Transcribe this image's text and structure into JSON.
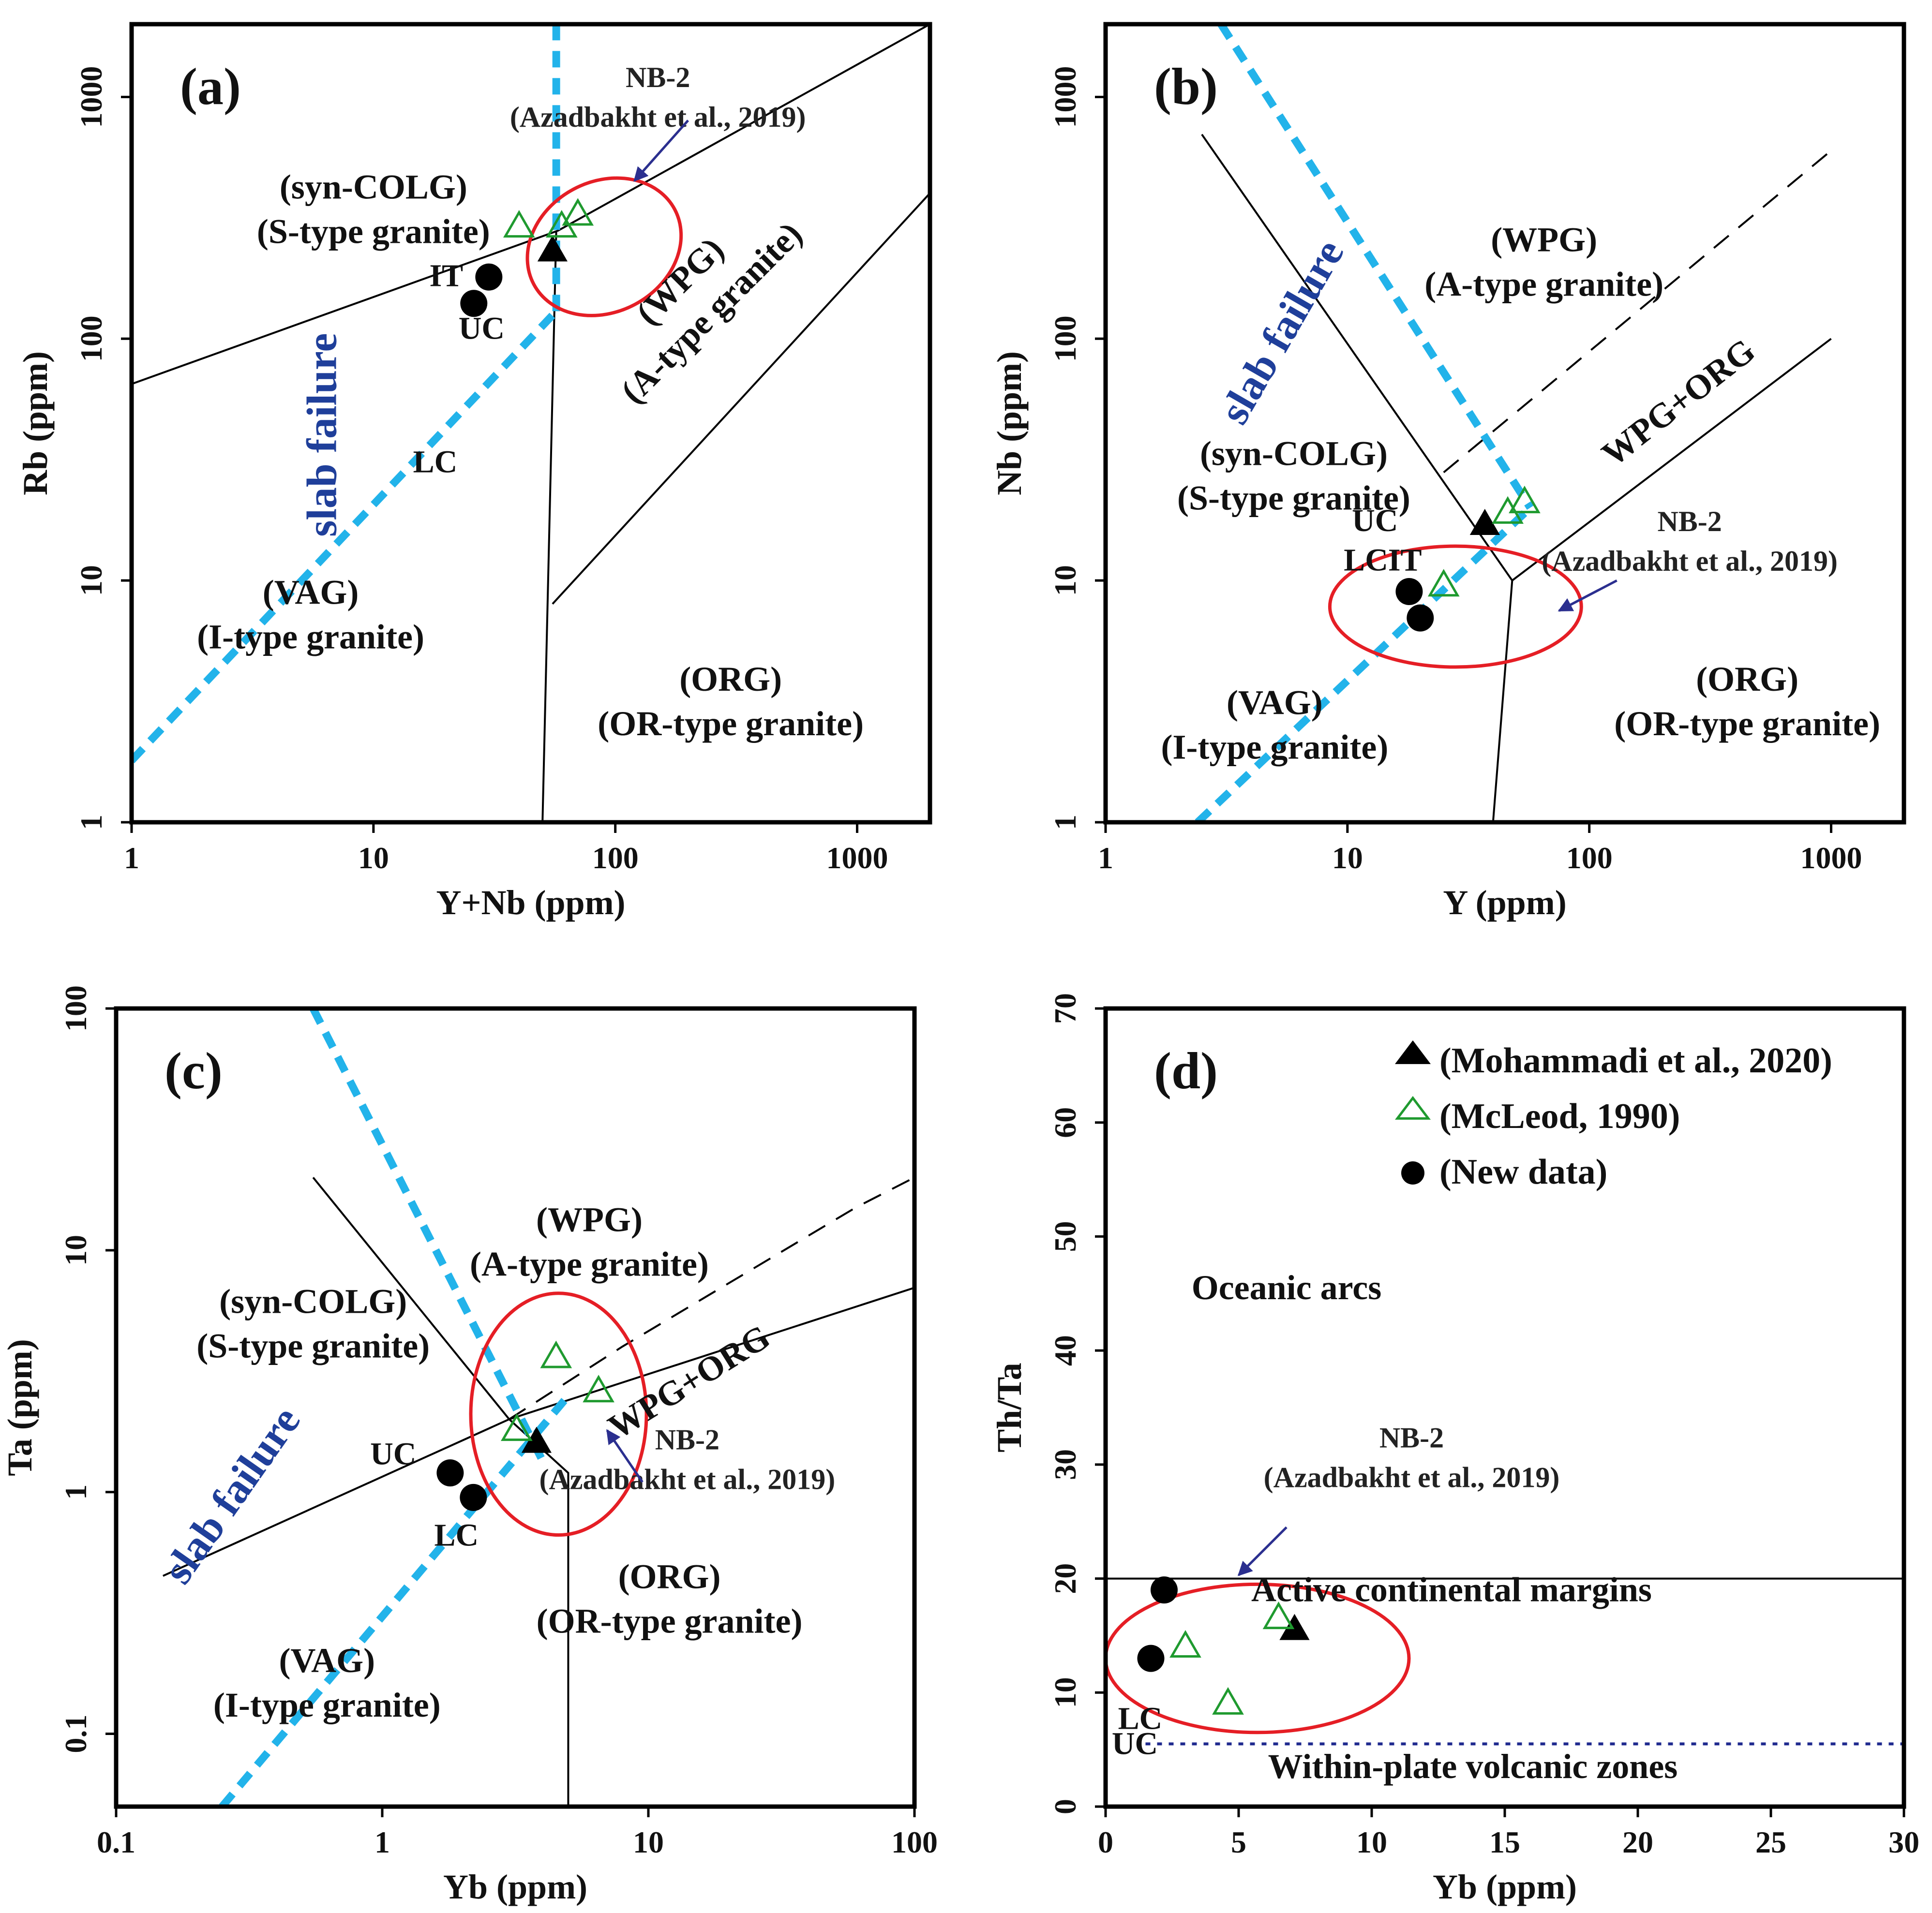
{
  "figure": {
    "colors": {
      "frame": "#000000",
      "boundary": "#000000",
      "slab_line": "#22b3ea",
      "slab_text": "#1f3f9a",
      "ellipse": "#e51e25",
      "arrow": "#2b2f8f",
      "triangle_open": "#1f9a2f",
      "dotted": "#1f2a8f"
    }
  },
  "chart_data": [
    {
      "id": "a",
      "type": "scatter",
      "panel_label": "(a)",
      "xscale": "log",
      "yscale": "log",
      "xlim": [
        1,
        2000
      ],
      "ylim": [
        1,
        2000
      ],
      "xlabel": "Y+Nb (ppm)",
      "ylabel": "Rb (ppm)",
      "xticks": [
        {
          "v": 1,
          "label": "1"
        },
        {
          "v": 10,
          "label": "10"
        },
        {
          "v": 100,
          "label": "100"
        },
        {
          "v": 1000,
          "label": "1000"
        }
      ],
      "yticks": [
        {
          "v": 1,
          "label": "1"
        },
        {
          "v": 10,
          "label": "10"
        },
        {
          "v": 100,
          "label": "100"
        },
        {
          "v": 1000,
          "label": "1000"
        }
      ],
      "fields": [
        {
          "name": "syn-colg",
          "lines": [
            "(syn-COLG)",
            "(S-type granite)"
          ],
          "at": [
            10,
            380
          ]
        },
        {
          "name": "wpg",
          "lines": [
            "(WPG)",
            "(A-type granite)"
          ],
          "at": [
            200,
            160
          ],
          "rotate": -45
        },
        {
          "name": "vag",
          "lines": [
            "(VAG)",
            "(I-type granite)"
          ],
          "at": [
            5.5,
            8
          ]
        },
        {
          "name": "org",
          "lines": [
            "(ORG)",
            "(OR-type granite)"
          ],
          "at": [
            300,
            3.5
          ]
        },
        {
          "name": "ref-it",
          "lines": [
            "IT"
          ],
          "at": [
            20,
            165
          ],
          "size": "sm"
        },
        {
          "name": "ref-uc",
          "lines": [
            "UC"
          ],
          "at": [
            28,
            100
          ],
          "size": "sm"
        },
        {
          "name": "ref-lc",
          "lines": [
            "LC"
          ],
          "at": [
            18,
            28
          ],
          "size": "sm"
        }
      ],
      "boundaries": [
        {
          "style": "solid",
          "points": [
            [
              1,
              65
            ],
            [
              58,
              280
            ],
            [
              2000,
              2000
            ]
          ]
        },
        {
          "style": "solid",
          "points": [
            [
              50,
              1
            ],
            [
              57,
              280
            ]
          ]
        },
        {
          "style": "solid",
          "points": [
            [
              55,
              8
            ],
            [
              2000,
              400
            ]
          ]
        }
      ],
      "slab_lines": [
        {
          "points": [
            [
              1,
              1.8
            ],
            [
              57,
              130
            ]
          ]
        },
        {
          "points": [
            [
              57,
              130
            ],
            [
              57,
              2000
            ]
          ]
        }
      ],
      "slab_label": {
        "text": "slab failure",
        "at": [
          7,
          40
        ],
        "rotate": -90
      },
      "ellipse": {
        "center": [
          90,
          240
        ],
        "rx_decades": 0.33,
        "ry_decades": 0.27,
        "rotate": -28
      },
      "annotation": {
        "lines": [
          "NB-2",
          "(Azadbakht et al., 2019)"
        ],
        "at": [
          150,
          1100
        ],
        "arrow_from": [
          200,
          800
        ],
        "arrow_to": [
          120,
          450
        ]
      },
      "series": [
        {
          "name": "Mohammadi et al., 2020",
          "marker": "filled-triangle",
          "points": [
            [
              55,
              230
            ]
          ]
        },
        {
          "name": "McLeod, 1990",
          "marker": "open-triangle",
          "points": [
            [
              40,
              290
            ],
            [
              60,
              290
            ],
            [
              70,
              325
            ]
          ]
        },
        {
          "name": "New data",
          "marker": "filled-circle",
          "points": [
            [
              30,
              180
            ],
            [
              26,
              140
            ]
          ]
        }
      ]
    },
    {
      "id": "b",
      "type": "scatter",
      "panel_label": "(b)",
      "xscale": "log",
      "yscale": "log",
      "xlim": [
        1,
        2000
      ],
      "ylim": [
        1,
        2000
      ],
      "xlabel": "Y (ppm)",
      "ylabel": "Nb (ppm)",
      "xticks": [
        {
          "v": 1,
          "label": "1"
        },
        {
          "v": 10,
          "label": "10"
        },
        {
          "v": 100,
          "label": "100"
        },
        {
          "v": 1000,
          "label": "1000"
        }
      ],
      "yticks": [
        {
          "v": 1,
          "label": "1"
        },
        {
          "v": 10,
          "label": "10"
        },
        {
          "v": 100,
          "label": "100"
        },
        {
          "v": 1000,
          "label": "1000"
        }
      ],
      "fields": [
        {
          "name": "wpg",
          "lines": [
            "(WPG)",
            "(A-type granite)"
          ],
          "at": [
            65,
            230
          ]
        },
        {
          "name": "syn-colg",
          "lines": [
            "(syn-COLG)",
            "(S-type granite)"
          ],
          "at": [
            6,
            30
          ]
        },
        {
          "name": "wpg-org",
          "lines": [
            "WPG+ORG"
          ],
          "at": [
            250,
            50
          ],
          "rotate": -38
        },
        {
          "name": "vag",
          "lines": [
            "(VAG)",
            "(I-type granite)"
          ],
          "at": [
            5,
            2.8
          ]
        },
        {
          "name": "org",
          "lines": [
            "(ORG)",
            "(OR-type granite)"
          ],
          "at": [
            450,
            3.5
          ]
        },
        {
          "name": "ref-uc",
          "lines": [
            "UC"
          ],
          "at": [
            13,
            16
          ],
          "size": "sm"
        },
        {
          "name": "ref-lcit",
          "lines": [
            "LCIT"
          ],
          "at": [
            14,
            11
          ],
          "size": "sm"
        }
      ],
      "boundaries": [
        {
          "style": "solid",
          "points": [
            [
              2.5,
              700
            ],
            [
              48,
              10
            ],
            [
              40,
              1
            ]
          ]
        },
        {
          "style": "solid",
          "points": [
            [
              48,
              10
            ],
            [
              1000,
              100
            ]
          ]
        },
        {
          "style": "dashed",
          "points": [
            [
              25,
              28
            ],
            [
              1000,
              600
            ]
          ]
        }
      ],
      "slab_lines": [
        {
          "points": [
            [
              2.4,
              1
            ],
            [
              57,
              20
            ]
          ]
        },
        {
          "points": [
            [
              3,
              2000
            ],
            [
              57,
              20
            ]
          ]
        }
      ],
      "slab_label": {
        "text": "slab failure",
        "at": [
          6,
          100
        ],
        "rotate": -60
      },
      "ellipse": {
        "center": [
          28,
          7.8
        ],
        "rx_decades": 0.52,
        "ry_decades": 0.25,
        "rotate": 0
      },
      "annotation": {
        "lines": [
          "NB-2",
          "(Azadbakht et al., 2019)"
        ],
        "at": [
          260,
          16
        ],
        "arrow_from": [
          130,
          10
        ],
        "arrow_to": [
          75,
          7.5
        ]
      },
      "series": [
        {
          "name": "Mohammadi et al., 2020",
          "marker": "filled-triangle",
          "points": [
            [
              37,
              17
            ]
          ]
        },
        {
          "name": "McLeod, 1990",
          "marker": "open-triangle",
          "points": [
            [
              46,
              19
            ],
            [
              54,
              21
            ],
            [
              25,
              9.5
            ]
          ]
        },
        {
          "name": "New data",
          "marker": "filled-circle",
          "points": [
            [
              18,
              9
            ],
            [
              20,
              7
            ]
          ]
        }
      ]
    },
    {
      "id": "c",
      "type": "scatter",
      "panel_label": "(c)",
      "xscale": "log",
      "yscale": "log",
      "xlim": [
        0.1,
        100
      ],
      "ylim": [
        0.05,
        100
      ],
      "xlabel": "Yb (ppm)",
      "ylabel": "Ta (ppm)",
      "xticks": [
        {
          "v": 0.1,
          "label": "0.1"
        },
        {
          "v": 1,
          "label": "1"
        },
        {
          "v": 10,
          "label": "10"
        },
        {
          "v": 100,
          "label": "100"
        }
      ],
      "yticks": [
        {
          "v": 0.1,
          "label": "0.1"
        },
        {
          "v": 1,
          "label": "1"
        },
        {
          "v": 10,
          "label": "10"
        },
        {
          "v": 100,
          "label": "100"
        }
      ],
      "fields": [
        {
          "name": "wpg",
          "lines": [
            "(WPG)",
            "(A-type granite)"
          ],
          "at": [
            6,
            12
          ]
        },
        {
          "name": "syn-colg",
          "lines": [
            "(syn-COLG)",
            "(S-type granite)"
          ],
          "at": [
            0.55,
            5.5
          ]
        },
        {
          "name": "wpg-org",
          "lines": [
            "WPG+ORG"
          ],
          "at": [
            15,
            2.6
          ],
          "rotate": -32
        },
        {
          "name": "vag",
          "lines": [
            "(VAG)",
            "(I-type granite)"
          ],
          "at": [
            0.62,
            0.18
          ]
        },
        {
          "name": "org",
          "lines": [
            "(ORG)",
            "(OR-type granite)"
          ],
          "at": [
            12,
            0.4
          ]
        },
        {
          "name": "ref-uc",
          "lines": [
            "UC"
          ],
          "at": [
            1.1,
            1.3
          ],
          "size": "sm"
        },
        {
          "name": "ref-lc",
          "lines": [
            "LC"
          ],
          "at": [
            1.9,
            0.6
          ],
          "size": "sm"
        }
      ],
      "boundaries": [
        {
          "style": "solid",
          "points": [
            [
              0.15,
              0.45
            ],
            [
              3,
              2
            ],
            [
              100,
              7
            ]
          ]
        },
        {
          "style": "solid",
          "points": [
            [
              0.55,
              20
            ],
            [
              3,
              2
            ]
          ]
        },
        {
          "style": "solid",
          "points": [
            [
              3,
              2
            ],
            [
              5,
              1.2
            ],
            [
              5,
              0.05
            ]
          ]
        },
        {
          "style": "dashed",
          "points": [
            [
              3,
              2
            ],
            [
              8,
              4
            ],
            [
              60,
              15
            ],
            [
              100,
              20
            ]
          ]
        }
      ],
      "slab_lines": [
        {
          "points": [
            [
              0.25,
              0.05
            ],
            [
              5,
              2.5
            ]
          ]
        },
        {
          "points": [
            [
              0.55,
              100
            ],
            [
              4,
              1.35
            ]
          ]
        }
      ],
      "slab_label": {
        "text": "slab failure",
        "at": [
          0.3,
          0.9
        ],
        "rotate": -55
      },
      "ellipse": {
        "center": [
          4.6,
          2.1
        ],
        "rx_decades": 0.33,
        "ry_decades": 0.5,
        "rotate": 0
      },
      "annotation": {
        "lines": [
          "NB-2",
          "(Azadbakht et al., 2019)"
        ],
        "at": [
          14,
          1.5
        ],
        "arrow_from": [
          9.5,
          1.1
        ],
        "arrow_to": [
          7,
          1.8
        ]
      },
      "series": [
        {
          "name": "Mohammadi et al., 2020",
          "marker": "filled-triangle",
          "points": [
            [
              3.8,
              1.6
            ]
          ]
        },
        {
          "name": "McLeod, 1990",
          "marker": "open-triangle",
          "points": [
            [
              4.5,
              3.6
            ],
            [
              6.5,
              2.6
            ],
            [
              3.2,
              1.8
            ]
          ]
        },
        {
          "name": "New data",
          "marker": "filled-circle",
          "points": [
            [
              1.8,
              1.2
            ],
            [
              2.2,
              0.95
            ]
          ]
        }
      ]
    },
    {
      "id": "d",
      "type": "scatter",
      "panel_label": "(d)",
      "xscale": "linear",
      "yscale": "linear",
      "xlim": [
        0,
        30
      ],
      "ylim": [
        0,
        70
      ],
      "xlabel": "Yb (ppm)",
      "ylabel": "Th/Ta",
      "xticks": [
        {
          "v": 0,
          "label": "0"
        },
        {
          "v": 5,
          "label": "5"
        },
        {
          "v": 10,
          "label": "10"
        },
        {
          "v": 15,
          "label": "15"
        },
        {
          "v": 20,
          "label": "20"
        },
        {
          "v": 25,
          "label": "25"
        },
        {
          "v": 30,
          "label": "30"
        }
      ],
      "yticks": [
        {
          "v": 0,
          "label": "0"
        },
        {
          "v": 10,
          "label": "10"
        },
        {
          "v": 20,
          "label": "20"
        },
        {
          "v": 30,
          "label": "30"
        },
        {
          "v": 40,
          "label": "40"
        },
        {
          "v": 50,
          "label": "50"
        },
        {
          "v": 60,
          "label": "60"
        },
        {
          "v": 70,
          "label": "70"
        }
      ],
      "fields": [
        {
          "name": "oceanic-arcs",
          "lines": [
            "Oceanic arcs"
          ],
          "at": [
            6.8,
            44.5
          ]
        },
        {
          "name": "active-margins",
          "lines": [
            "Active continental margins"
          ],
          "at": [
            13,
            18
          ]
        },
        {
          "name": "within-plate",
          "lines": [
            "Within-plate volcanic zones"
          ],
          "at": [
            13.8,
            2.5
          ]
        },
        {
          "name": "ref-lc",
          "lines": [
            "LC"
          ],
          "at": [
            1.3,
            6.8
          ],
          "size": "sm"
        },
        {
          "name": "ref-uc",
          "lines": [
            "UC"
          ],
          "at": [
            1.1,
            4.6
          ],
          "size": "sm"
        }
      ],
      "boundaries": [
        {
          "style": "solid",
          "points": [
            [
              0,
              20
            ],
            [
              30,
              20
            ]
          ]
        },
        {
          "style": "dotted",
          "points": [
            [
              1.5,
              5.5
            ],
            [
              30,
              5.5
            ]
          ]
        }
      ],
      "slab_lines": [],
      "ellipse": {
        "center": [
          5.7,
          13
        ],
        "rx_units": 5.7,
        "ry_units": 6.5,
        "rotate": 0
      },
      "annotation": {
        "lines": [
          "NB-2",
          "(Azadbakht et al., 2019)"
        ],
        "at": [
          11.5,
          31.5
        ],
        "arrow_from": [
          6.8,
          24.5
        ],
        "arrow_to": [
          5,
          20.3
        ]
      },
      "series": [
        {
          "name": "Mohammadi et al., 2020",
          "marker": "filled-triangle",
          "points": [
            [
              7.1,
              15.5
            ]
          ]
        },
        {
          "name": "McLeod, 1990",
          "marker": "open-triangle",
          "points": [
            [
              6.5,
              16.5
            ],
            [
              3,
              14
            ],
            [
              4.6,
              9
            ]
          ]
        },
        {
          "name": "New data",
          "marker": "filled-circle",
          "points": [
            [
              2.2,
              19
            ],
            [
              1.7,
              13
            ]
          ]
        }
      ],
      "legend": {
        "placement": "top-right",
        "entries": [
          {
            "marker": "filled-triangle",
            "label": "(Mohammadi et al., 2020)"
          },
          {
            "marker": "open-triangle",
            "label": "(McLeod, 1990)"
          },
          {
            "marker": "filled-circle",
            "label": "(New data)"
          }
        ]
      }
    }
  ]
}
